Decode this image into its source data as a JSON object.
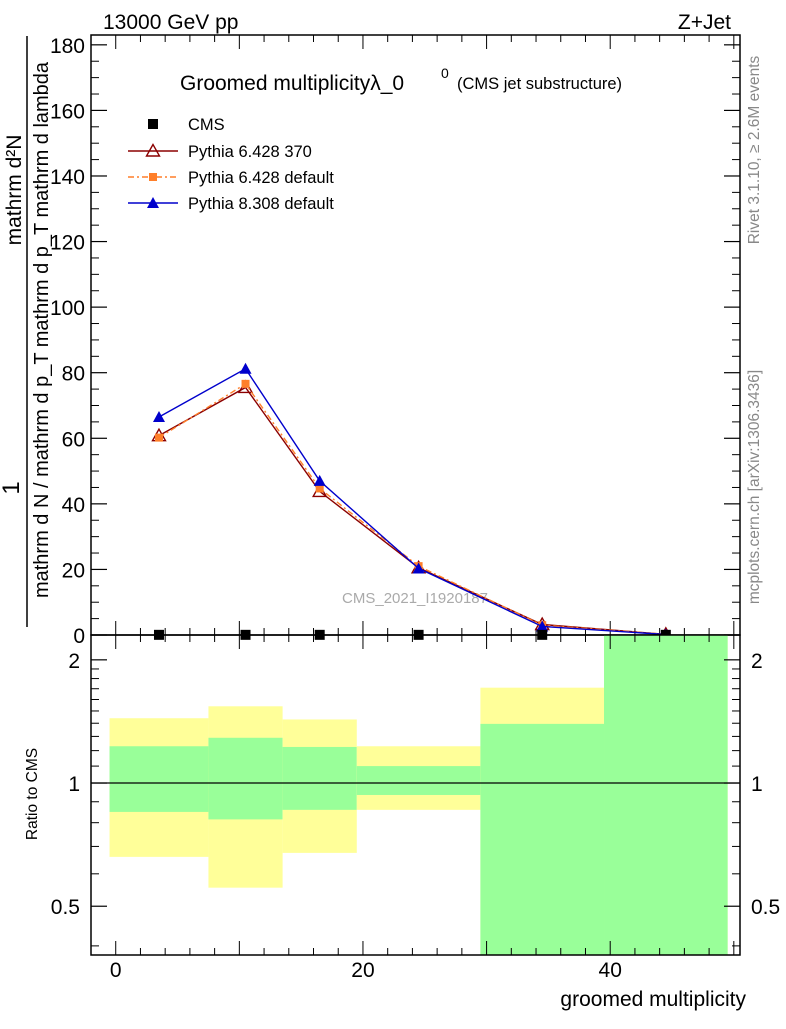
{
  "header": {
    "energy_label": "13000 GeV pp",
    "process_label": "Z+Jet",
    "rivet_label": "Rivet 3.1.10, ≥ 2.6M events",
    "mcplots_label": "mcplots.cern.ch [arXiv:1306.3436]",
    "watermark": "CMS_2021_I1920187"
  },
  "colors": {
    "cms": "#000000",
    "pythia6_370": "#8b0000",
    "pythia6_default": "#ff7f2a",
    "pythia8_default": "#0000cc",
    "band_inner": "#99ff99",
    "band_outer": "#ffff99"
  },
  "chart_data": [
    {
      "type": "line",
      "title": "Groomed multiplicityλ_0",
      "title_sup": "0",
      "title_suffix": "(CMS jet substructure)",
      "ylabel_numerator": "1",
      "ylabel_denominator": "mathrm d N / mathrm d p_T mathrm d p_T mathrm d lambda",
      "ylabel_top": "mathrm d²N",
      "ylim": [
        0,
        183
      ],
      "xlim": [
        -2,
        50.5
      ],
      "yticks": [
        0,
        20,
        40,
        60,
        80,
        100,
        120,
        140,
        160,
        180
      ],
      "legend_position": "top-left",
      "series": [
        {
          "name": "CMS",
          "color": "#000000",
          "marker": "square",
          "x": [
            3.5,
            10.5,
            16.5,
            24.5,
            34.5,
            44.5
          ],
          "y": [
            0.05,
            0.05,
            0.05,
            0.05,
            0.05,
            0.05
          ]
        },
        {
          "name": "Pythia 6.428 370",
          "color": "#8b0000",
          "marker": "triangle-open",
          "x": [
            3.5,
            10.5,
            16.5,
            24.5,
            34.5,
            44.5
          ],
          "y": [
            60.8,
            75.5,
            43.8,
            20.5,
            3.2,
            0.2
          ]
        },
        {
          "name": "Pythia 6.428 default",
          "color": "#ff7f2a",
          "marker": "square-small",
          "x": [
            3.5,
            10.5,
            16.5,
            24.5,
            34.5,
            44.5
          ],
          "y": [
            60.2,
            76.6,
            44.7,
            21.0,
            3.0,
            0.2
          ]
        },
        {
          "name": "Pythia 8.308 default",
          "color": "#0000cc",
          "marker": "triangle",
          "x": [
            3.5,
            10.5,
            16.5,
            24.5,
            34.5,
            44.5
          ],
          "y": [
            66.5,
            81.2,
            47.0,
            20.3,
            2.6,
            0.15
          ]
        }
      ]
    },
    {
      "type": "area",
      "title": "",
      "ylabel": "Ratio to CMS",
      "xlabel": "groomed multiplicity",
      "log_y": true,
      "ylim": [
        0.38,
        2.3
      ],
      "xlim": [
        -2,
        50.5
      ],
      "xticks": [
        0,
        20,
        40
      ],
      "yticks": [
        0.5,
        1,
        2
      ],
      "ytick_labels": [
        "0.5",
        "1",
        "2"
      ],
      "bins": [
        {
          "lo": -0.5,
          "hi": 7.5,
          "inner": [
            0.85,
            1.23
          ],
          "outer": [
            0.66,
            1.44
          ]
        },
        {
          "lo": 7.5,
          "hi": 13.5,
          "inner": [
            0.815,
            1.29
          ],
          "outer": [
            0.555,
            1.54
          ]
        },
        {
          "lo": 13.5,
          "hi": 19.5,
          "inner": [
            0.86,
            1.225
          ],
          "outer": [
            0.675,
            1.43
          ]
        },
        {
          "lo": 19.5,
          "hi": 29.5,
          "inner": [
            0.935,
            1.1
          ],
          "outer": [
            0.86,
            1.23
          ]
        },
        {
          "lo": 29.5,
          "hi": 39.5,
          "inner": [
            0.38,
            1.395
          ],
          "outer": [
            0.38,
            1.71
          ]
        },
        {
          "lo": 39.5,
          "hi": 49.5,
          "inner": [
            0.38,
            2.3
          ],
          "outer": [
            0.38,
            2.3
          ]
        }
      ]
    }
  ]
}
